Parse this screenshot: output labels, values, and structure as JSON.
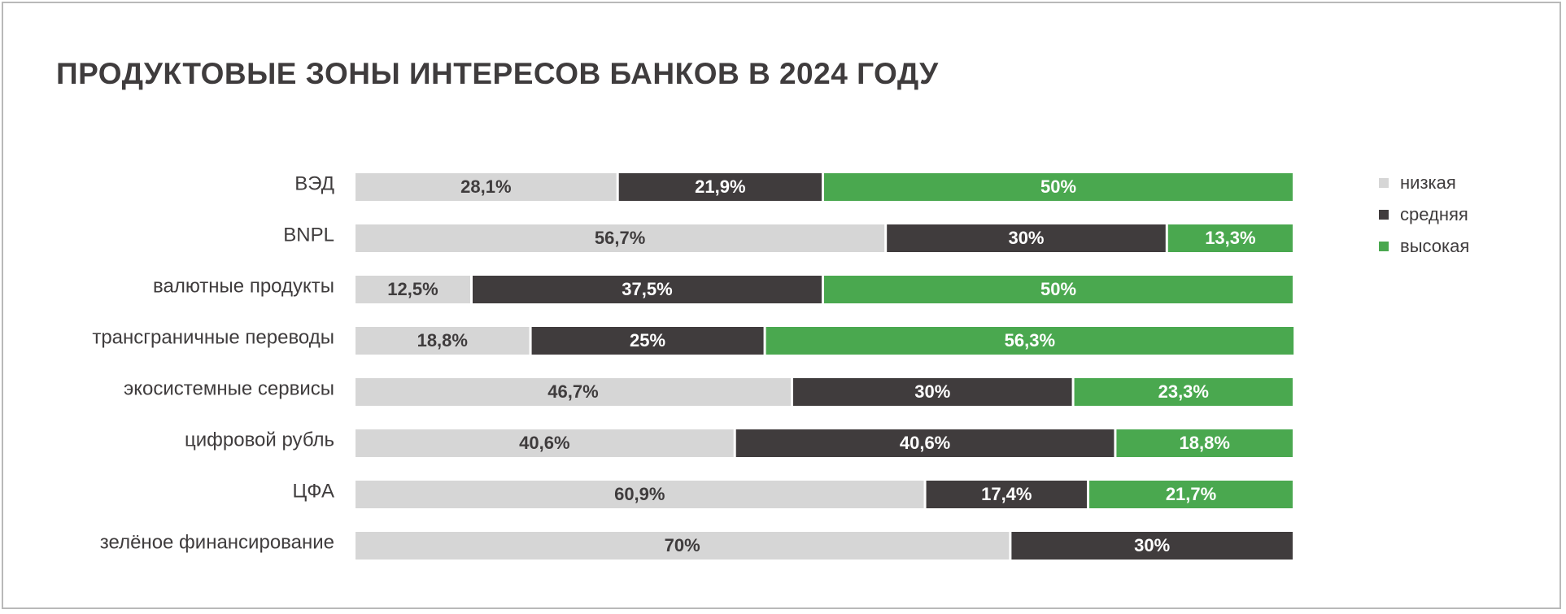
{
  "title": "ПРОДУКТОВЫЕ ЗОНЫ ИНТЕРЕСОВ БАНКОВ В 2024 ГОДУ",
  "colors": {
    "low": "#d6d6d6",
    "medium": "#403c3d",
    "high": "#4aa84f",
    "low_text": "#3f3c3d",
    "dark_text": "#ffffff"
  },
  "chart_data": {
    "type": "bar",
    "orientation": "horizontal",
    "stacked": true,
    "title": "ПРОДУКТОВЫЕ ЗОНЫ ИНТЕРЕСОВ БАНКОВ В 2024 ГОДУ",
    "categories": [
      "ВЭД",
      "BNPL",
      "валютные продукты",
      "трансграничные переводы",
      "экосистемные сервисы",
      "цифровой рубль",
      "ЦФА",
      "зелёное финансирование"
    ],
    "series": [
      {
        "name": "низкая",
        "values": [
          28.1,
          56.7,
          12.5,
          18.8,
          46.7,
          40.6,
          60.9,
          70
        ],
        "labels": [
          "28,1%",
          "56,7%",
          "12,5%",
          "18,8%",
          "46,7%",
          "40,6%",
          "60,9%",
          "70%"
        ]
      },
      {
        "name": "средняя",
        "values": [
          21.9,
          30,
          37.5,
          25,
          30,
          40.6,
          17.4,
          30
        ],
        "labels": [
          "21,9%",
          "30%",
          "37,5%",
          "25%",
          "30%",
          "40,6%",
          "17,4%",
          "30%"
        ]
      },
      {
        "name": "высокая",
        "values": [
          50,
          13.3,
          50,
          56.3,
          23.3,
          18.8,
          21.7,
          0
        ],
        "labels": [
          "50%",
          "13,3%",
          "50%",
          "56,3%",
          "23,3%",
          "18,8%",
          "21,7%",
          ""
        ]
      }
    ],
    "xlim": [
      0,
      100
    ],
    "legend_position": "right",
    "grid": false
  }
}
